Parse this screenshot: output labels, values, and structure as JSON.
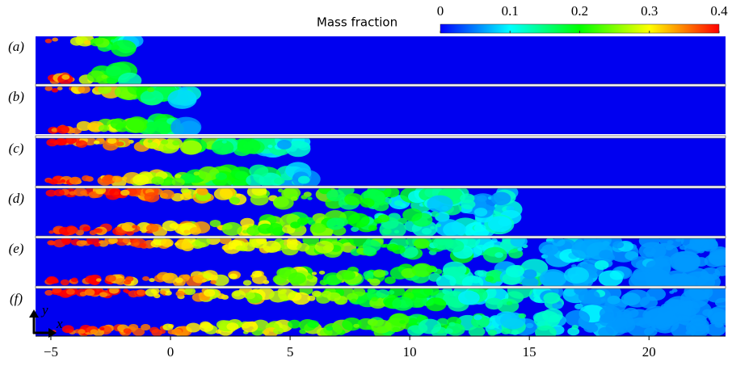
{
  "chart_data": {
    "type": "contour",
    "colorbar_label": "Mass fraction",
    "clim": [
      0,
      0.4
    ],
    "colorbar_ticks": [
      0,
      0.1,
      0.2,
      0.3,
      0.4
    ],
    "colormap": [
      "#0000ff",
      "#00ffff",
      "#00ff00",
      "#ffff00",
      "#ff0000"
    ],
    "panels": [
      "(a)",
      "(b)",
      "(c)",
      "(d)",
      "(e)",
      "(f)"
    ],
    "xlim": [
      -5.64,
      23.2
    ],
    "xticks": [
      {
        "value": -5,
        "label": "−5"
      },
      0,
      5,
      10,
      15,
      20
    ],
    "axis_labels": {
      "x": "x",
      "y": "y"
    }
  }
}
